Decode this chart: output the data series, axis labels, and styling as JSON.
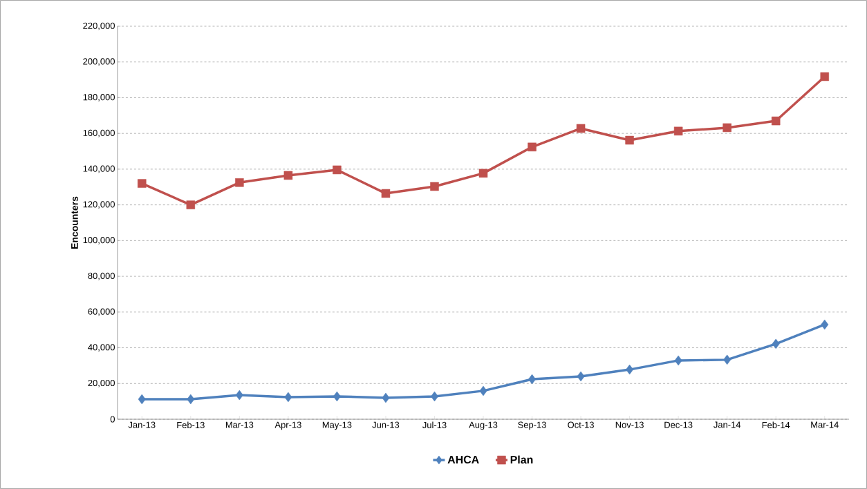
{
  "chart_data": {
    "type": "line",
    "ylabel": "Encounters",
    "categories": [
      "Jan-13",
      "Feb-13",
      "Mar-13",
      "Apr-13",
      "May-13",
      "Jun-13",
      "Jul-13",
      "Aug-13",
      "Sep-13",
      "Oct-13",
      "Nov-13",
      "Dec-13",
      "Jan-14",
      "Feb-14",
      "Mar-14"
    ],
    "series": [
      {
        "name": "AHCA",
        "color": "#4f81bd",
        "marker": "diamond",
        "values": [
          11200,
          11200,
          13500,
          12400,
          12800,
          12000,
          12800,
          15900,
          22400,
          24000,
          27800,
          32900,
          33300,
          42200,
          53000
        ]
      },
      {
        "name": "Plan",
        "color": "#c0504d",
        "marker": "square",
        "values": [
          132000,
          120000,
          132500,
          136500,
          139600,
          126400,
          130300,
          137700,
          152400,
          162800,
          156200,
          161300,
          163200,
          167000,
          191800
        ]
      }
    ],
    "ylim": [
      0,
      220000
    ],
    "yticks": [
      0,
      {
        "value": 20000,
        "label": "20,000"
      },
      {
        "value": 40000,
        "label": "40,000"
      },
      {
        "value": 60000,
        "label": "60,000"
      },
      {
        "value": 80000,
        "label": "80,000"
      },
      {
        "value": 100000,
        "label": "100,000"
      },
      {
        "value": 120000,
        "label": "120,000"
      },
      {
        "value": 140000,
        "label": "140,000"
      },
      {
        "value": 160000,
        "label": "160,000"
      },
      {
        "value": 180000,
        "label": "180,000"
      },
      {
        "value": 200000,
        "label": "200,000"
      },
      {
        "value": 220000,
        "label": "220,000"
      }
    ],
    "grid": "y",
    "legend": "bottom",
    "line_style": "solid"
  }
}
